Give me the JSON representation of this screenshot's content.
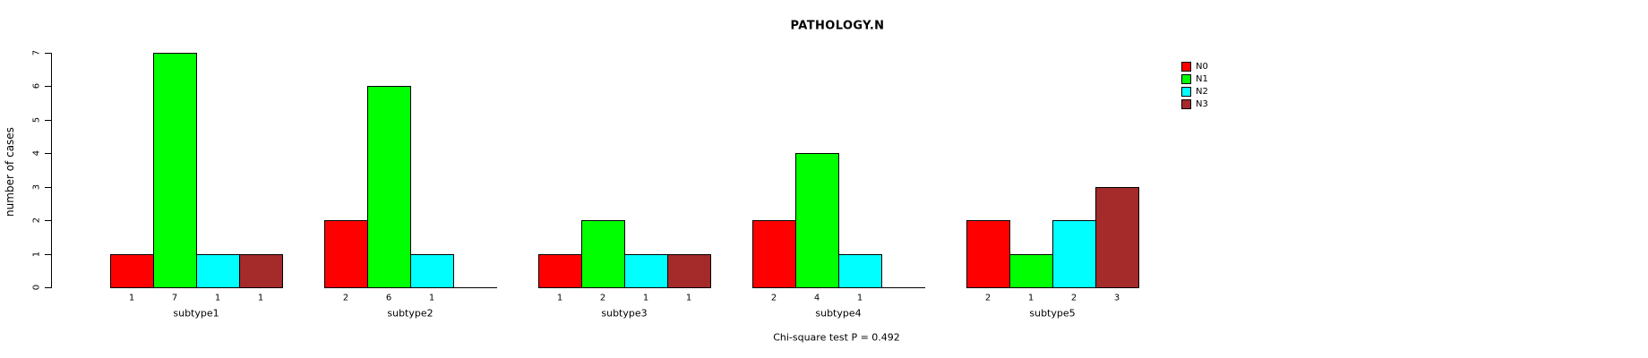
{
  "chart_data": {
    "type": "bar",
    "title": "PATHOLOGY.N",
    "ylabel": "number of cases",
    "xlabel": "",
    "footnote": "Chi-square test P = 0.492",
    "categories": [
      "subtype1",
      "subtype2",
      "subtype3",
      "subtype4",
      "subtype5"
    ],
    "series": [
      {
        "name": "N0",
        "color": "#FF0000",
        "values": [
          1,
          2,
          1,
          2,
          2
        ]
      },
      {
        "name": "N1",
        "color": "#00FF00",
        "values": [
          7,
          6,
          2,
          4,
          1
        ]
      },
      {
        "name": "N2",
        "color": "#00FFFF",
        "values": [
          1,
          1,
          1,
          1,
          2
        ]
      },
      {
        "name": "N3",
        "color": "#A52A2A",
        "values": [
          1,
          0,
          1,
          0,
          3
        ]
      }
    ],
    "bar_value_labels": [
      [
        "1",
        "7",
        "1",
        "1"
      ],
      [
        "2",
        "6",
        "1",
        ""
      ],
      [
        "1",
        "2",
        "1",
        "1"
      ],
      [
        "2",
        "4",
        "1",
        ""
      ],
      [
        "2",
        "1",
        "2",
        "3"
      ]
    ],
    "ylim": [
      0,
      7
    ],
    "yticks": [
      "0",
      "1",
      "2",
      "3",
      "4",
      "5",
      "6",
      "7"
    ],
    "grid": false,
    "legend_position": "top-right",
    "colors": {
      "axis": "#000000",
      "text": "#000000",
      "background": "#FFFFFF"
    }
  }
}
